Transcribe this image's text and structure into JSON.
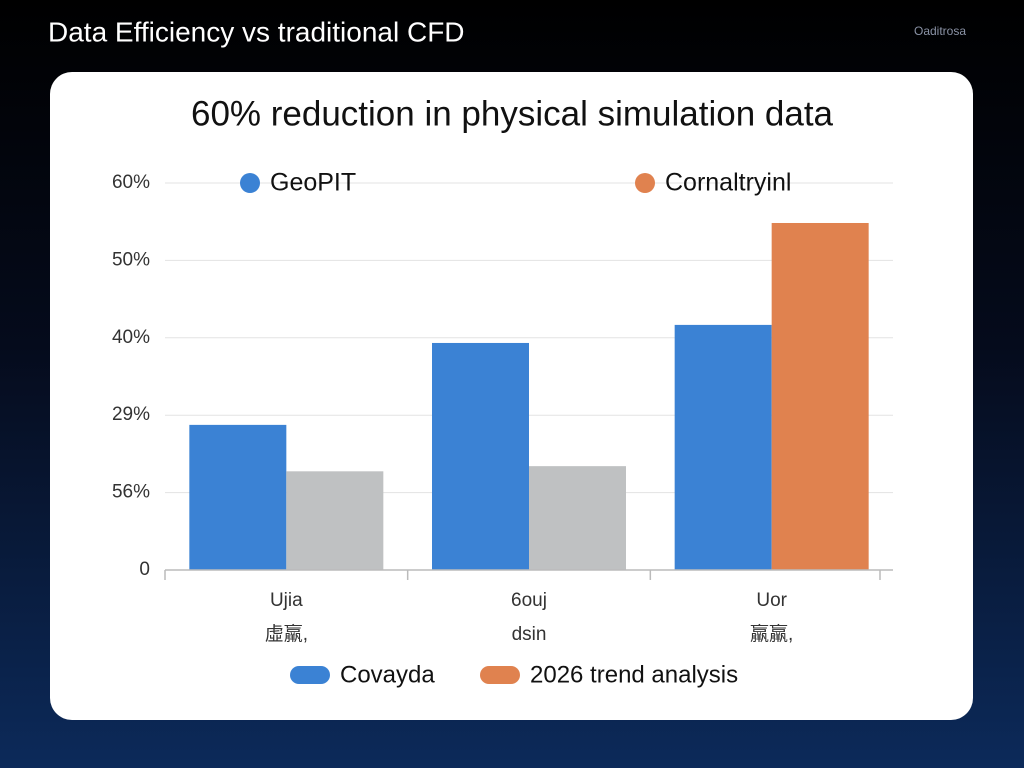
{
  "header": {
    "title": "Data Efficiency vs traditional CFD",
    "badge": "Oaditrosa"
  },
  "chart_data": {
    "type": "bar",
    "title": "60% reduction in physical simulation data",
    "categories": [
      "Ujia",
      "6ouj",
      "Uor"
    ],
    "category_sublabels": [
      "虛羸,",
      "dsin",
      "羸羸,"
    ],
    "series": [
      {
        "name": "GeoPIT",
        "color": "#3b82d4",
        "values": [
          22.5,
          35.2,
          38.0
        ]
      },
      {
        "color": "#bfc1c2",
        "values": [
          15.3,
          16.1,
          null
        ]
      },
      {
        "name": "Cornaltryinl",
        "color": "#e0824f",
        "values": [
          null,
          null,
          53.8
        ]
      }
    ],
    "legend2": [
      {
        "label": "Covayda",
        "color": "#3b82d4"
      },
      {
        "label": "2026 trend analysis",
        "color": "#e0824f"
      }
    ],
    "ylim": [
      0,
      60
    ],
    "yticks": [
      0,
      {
        "value": 12,
        "label": "56%"
      },
      {
        "value": 24,
        "label": "29%"
      },
      {
        "value": 36,
        "label": "40%"
      },
      {
        "value": 48,
        "label": "50%"
      },
      {
        "value": 60,
        "label": "60%"
      }
    ],
    "grid": true
  }
}
